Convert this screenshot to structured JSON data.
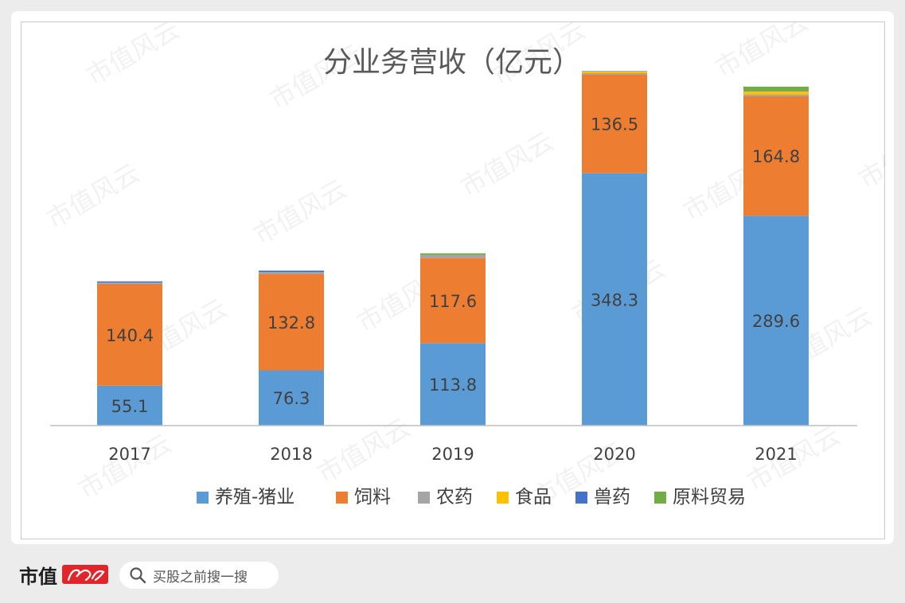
{
  "chart_data": {
    "type": "bar",
    "stacked": true,
    "title": "分业务营收（亿元）",
    "categories": [
      "2017",
      "2018",
      "2019",
      "2020",
      "2021"
    ],
    "series": [
      {
        "name": "养殖-猪业",
        "color": "#5b9bd5",
        "values": [
          55.1,
          76.3,
          113.8,
          348.3,
          289.6
        ],
        "labeled": true
      },
      {
        "name": "饲料",
        "color": "#ed7d31",
        "values": [
          140.4,
          132.8,
          117.6,
          136.5,
          164.8
        ],
        "labeled": true
      },
      {
        "name": "农药",
        "color": "#a5a5a5",
        "values": [
          1.7,
          2.6,
          3.5,
          1.5,
          2.2
        ],
        "labeled": false
      },
      {
        "name": "食品",
        "color": "#ffc000",
        "values": [
          0,
          0,
          0.4,
          2.3,
          4.8
        ],
        "labeled": false
      },
      {
        "name": "兽药",
        "color": "#4472c4",
        "values": [
          1.8,
          2.1,
          0.6,
          0.6,
          0.7
        ],
        "labeled": false
      },
      {
        "name": "原料贸易",
        "color": "#70ad47",
        "values": [
          0,
          0,
          1.8,
          0,
          5.6
        ],
        "labeled": false
      }
    ],
    "ylim": [
      0,
      500
    ],
    "grid": false,
    "legend_position": "bottom"
  },
  "watermark": "市值风云",
  "footer": {
    "brand": "市值",
    "brand_logo_alt": "风云",
    "search_icon": "search-icon",
    "search_text": "买股之前搜一搜"
  },
  "colors": {
    "background": "#ececec",
    "card": "#ffffff",
    "frame_border": "#c9c9c9",
    "brand_red": "#e0252b"
  }
}
